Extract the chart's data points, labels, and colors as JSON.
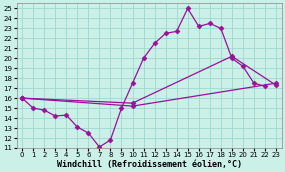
{
  "xlabel": "Windchill (Refroidissement éolien,°C)",
  "xlim": [
    -0.5,
    23.5
  ],
  "ylim": [
    11,
    25.5
  ],
  "xticks": [
    0,
    1,
    2,
    3,
    4,
    5,
    6,
    7,
    8,
    9,
    10,
    11,
    12,
    13,
    14,
    15,
    16,
    17,
    18,
    19,
    20,
    21,
    22,
    23
  ],
  "yticks": [
    11,
    12,
    13,
    14,
    15,
    16,
    17,
    18,
    19,
    20,
    21,
    22,
    23,
    24,
    25
  ],
  "background_color": "#caf0e8",
  "grid_color": "#a0d8d0",
  "line_color": "#991199",
  "line1_x": [
    0,
    1,
    2,
    3,
    4,
    5,
    6,
    7,
    8,
    9,
    10,
    11,
    12,
    13,
    14,
    15,
    16,
    17,
    18,
    19,
    20,
    21,
    22
  ],
  "line1_y": [
    16.0,
    15.0,
    14.8,
    14.2,
    14.3,
    13.1,
    12.5,
    11.1,
    11.8,
    15.0,
    17.5,
    20.0,
    21.5,
    22.5,
    22.7,
    25.0,
    23.2,
    23.5,
    23.0,
    20.0,
    19.2,
    17.5,
    17.2
  ],
  "line2_x": [
    0,
    10,
    19,
    23
  ],
  "line2_y": [
    16.0,
    15.5,
    20.2,
    17.3
  ],
  "line3_x": [
    0,
    10,
    23
  ],
  "line3_y": [
    16.0,
    15.2,
    17.5
  ],
  "marker": "D",
  "markersize": 2.5,
  "linewidth": 0.9,
  "tick_fontsize": 5.0,
  "xlabel_fontsize": 6.0
}
